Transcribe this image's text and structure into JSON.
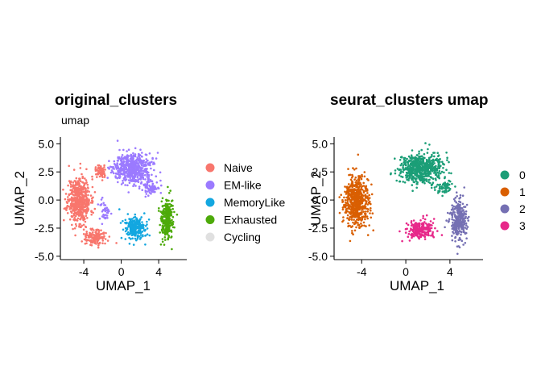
{
  "chart_data": [
    {
      "type": "scatter",
      "title": "original_clusters",
      "subtitle": "umap",
      "xlabel": "UMAP_1",
      "ylabel": "UMAP_2",
      "xlim": [
        -6.5,
        7.0
      ],
      "ylim": [
        -5.3,
        5.6
      ],
      "x_ticks": [
        -4,
        0,
        4
      ],
      "y_ticks": [
        5.0,
        2.5,
        0.0,
        -2.5,
        -5.0
      ],
      "x_tick_labels": [
        "-4",
        "0",
        "4"
      ],
      "y_tick_labels": [
        "5.0",
        "2.5",
        "0.0",
        "-2.5",
        "-5.0"
      ],
      "grid": false,
      "legend_position": "right",
      "series": [
        {
          "name": "Naive",
          "color": "#F8766D",
          "clusters": [
            {
              "cx": -4.5,
              "cy": 0.0,
              "sx": 1.1,
              "sy": 1.9,
              "n": 520
            },
            {
              "cx": -2.8,
              "cy": -3.3,
              "sx": 0.9,
              "sy": 0.6,
              "n": 160
            },
            {
              "cx": -2.2,
              "cy": 2.6,
              "sx": 0.5,
              "sy": 0.5,
              "n": 60
            }
          ]
        },
        {
          "name": "EM-like",
          "color": "#9B7AFF",
          "clusters": [
            {
              "cx": 1.2,
              "cy": 2.8,
              "sx": 1.8,
              "sy": 1.2,
              "n": 560
            },
            {
              "cx": 3.2,
              "cy": 1.0,
              "sx": 0.8,
              "sy": 0.6,
              "n": 80
            },
            {
              "cx": -1.8,
              "cy": -1.0,
              "sx": 0.5,
              "sy": 0.8,
              "n": 40
            }
          ]
        },
        {
          "name": "MemoryLike",
          "color": "#13A7E0",
          "clusters": [
            {
              "cx": 1.5,
              "cy": -2.5,
              "sx": 1.0,
              "sy": 0.9,
              "n": 240
            }
          ]
        },
        {
          "name": "Exhausted",
          "color": "#4DAA0A",
          "clusters": [
            {
              "cx": 4.9,
              "cy": -1.8,
              "sx": 0.6,
              "sy": 1.6,
              "n": 300
            }
          ]
        },
        {
          "name": "Cycling",
          "color": "#E0E0E0",
          "clusters": []
        }
      ]
    },
    {
      "type": "scatter",
      "title": "seurat_clusters umap",
      "subtitle": "",
      "xlabel": "UMAP_1",
      "ylabel": "UMAP_2",
      "xlim": [
        -6.5,
        7.0
      ],
      "ylim": [
        -5.3,
        5.6
      ],
      "x_ticks": [
        -4,
        0,
        4
      ],
      "y_ticks": [
        5.0,
        2.5,
        0.0,
        -2.5,
        -5.0
      ],
      "x_tick_labels": [
        "-4",
        "0",
        "4"
      ],
      "y_tick_labels": [
        "5.0",
        "2.5",
        "0.0",
        "-2.5",
        "-5.0"
      ],
      "grid": false,
      "legend_position": "right",
      "series": [
        {
          "name": "0",
          "color": "#1B9E77",
          "clusters": [
            {
              "cx": 1.3,
              "cy": 2.8,
              "sx": 1.8,
              "sy": 1.2,
              "n": 600
            },
            {
              "cx": 3.5,
              "cy": 1.2,
              "sx": 0.7,
              "sy": 0.5,
              "n": 60
            }
          ]
        },
        {
          "name": "1",
          "color": "#D95F02",
          "clusters": [
            {
              "cx": -4.5,
              "cy": -0.2,
              "sx": 1.0,
              "sy": 1.9,
              "n": 620
            }
          ]
        },
        {
          "name": "2",
          "color": "#7570B3",
          "clusters": [
            {
              "cx": 4.8,
              "cy": -1.8,
              "sx": 0.7,
              "sy": 1.7,
              "n": 300
            }
          ]
        },
        {
          "name": "3",
          "color": "#E7298A",
          "clusters": [
            {
              "cx": 1.3,
              "cy": -2.6,
              "sx": 1.1,
              "sy": 0.8,
              "n": 230
            }
          ]
        }
      ]
    }
  ]
}
